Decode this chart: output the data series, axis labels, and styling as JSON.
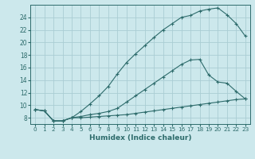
{
  "xlabel": "Humidex (Indice chaleur)",
  "background_color": "#cce8ec",
  "grid_color": "#aacdd4",
  "line_color": "#2d6b6b",
  "xlim": [
    -0.5,
    23.5
  ],
  "ylim": [
    7,
    26
  ],
  "xticks": [
    0,
    1,
    2,
    3,
    4,
    5,
    6,
    7,
    8,
    9,
    10,
    11,
    12,
    13,
    14,
    15,
    16,
    17,
    18,
    19,
    20,
    21,
    22,
    23
  ],
  "yticks": [
    8,
    10,
    12,
    14,
    16,
    18,
    20,
    22,
    24
  ],
  "lines": [
    {
      "x": [
        0,
        1,
        2,
        3,
        4,
        5,
        6,
        7,
        8,
        9,
        10,
        11,
        12,
        13,
        14,
        15,
        16,
        17,
        18,
        19,
        20,
        21,
        22,
        23
      ],
      "y": [
        9.3,
        9.1,
        7.5,
        7.5,
        8.0,
        9.0,
        10.2,
        11.5,
        13.0,
        15.0,
        16.8,
        18.2,
        19.5,
        20.8,
        22.0,
        23.0,
        24.0,
        24.3,
        25.0,
        25.3,
        25.5,
        24.4,
        23.0,
        21.0
      ]
    },
    {
      "x": [
        0,
        1,
        2,
        3,
        4,
        5,
        6,
        7,
        8,
        9,
        10,
        11,
        12,
        13,
        14,
        15,
        16,
        17,
        18,
        19,
        20,
        21,
        22,
        23
      ],
      "y": [
        9.3,
        9.1,
        7.5,
        7.5,
        8.0,
        8.2,
        8.5,
        8.7,
        9.0,
        9.5,
        10.5,
        11.5,
        12.5,
        13.5,
        14.5,
        15.5,
        16.5,
        17.2,
        17.3,
        14.8,
        13.7,
        13.5,
        12.2,
        11.0
      ]
    },
    {
      "x": [
        0,
        1,
        2,
        3,
        4,
        5,
        6,
        7,
        8,
        9,
        10,
        11,
        12,
        13,
        14,
        15,
        16,
        17,
        18,
        19,
        20,
        21,
        22,
        23
      ],
      "y": [
        9.3,
        9.1,
        7.5,
        7.5,
        8.0,
        8.0,
        8.1,
        8.2,
        8.3,
        8.4,
        8.5,
        8.7,
        8.9,
        9.1,
        9.3,
        9.5,
        9.7,
        9.9,
        10.1,
        10.3,
        10.5,
        10.7,
        10.9,
        11.0
      ]
    }
  ]
}
